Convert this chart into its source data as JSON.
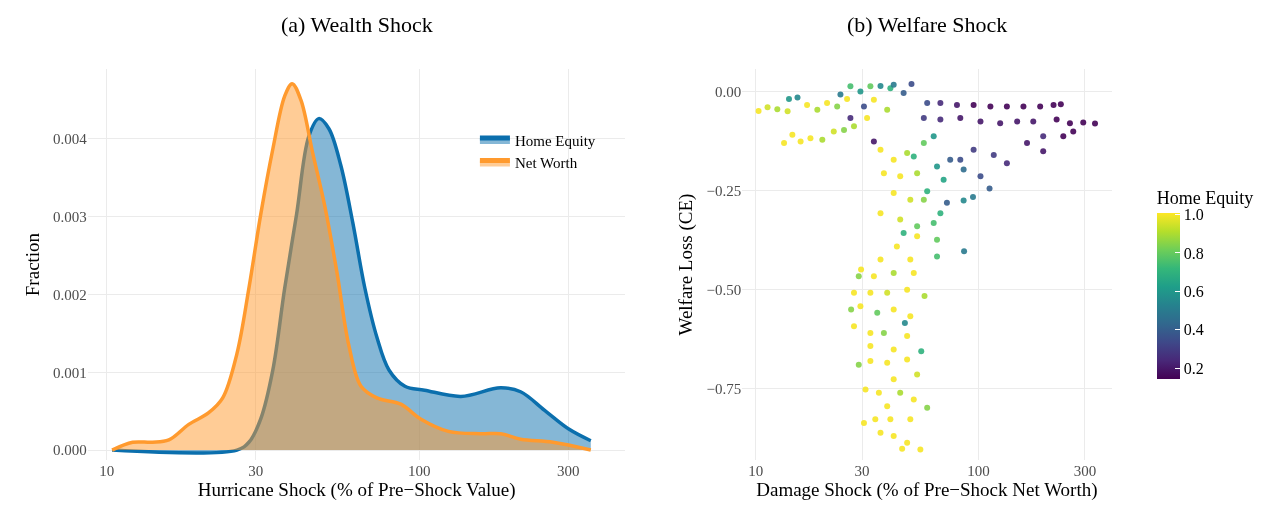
{
  "chart_data": [
    {
      "type": "area",
      "title": "(a) Wealth Shock",
      "xlabel": "Hurricane Shock (% of Pre−Shock Value)",
      "ylabel": "Fraction",
      "log": "x",
      "grid": true,
      "legend": "top right",
      "xlim": [
        8.7,
        457
      ],
      "xticks": [
        10,
        30,
        100,
        300
      ],
      "ylim": [
        -0.00013,
        0.0049
      ],
      "yticks": [
        {
          "value": 0,
          "label": "0.000"
        },
        {
          "value": 0.001,
          "label": "0.001"
        },
        {
          "value": 0.002,
          "label": "0.002"
        },
        {
          "value": 0.003,
          "label": "0.003"
        },
        {
          "value": 0.004,
          "label": "0.004"
        }
      ],
      "series": [
        {
          "name": "Home Equity",
          "color": "#0b6fad",
          "x": [
            10.4,
            26.1,
            28.5,
            31.1,
            34.0,
            37.1,
            40.5,
            44.3,
            47.7,
            51.4,
            56.1,
            61.3,
            67.0,
            73.2,
            80.0,
            90.0,
            104,
            136,
            182,
            211,
            252,
            301,
            354
          ],
          "values": [
            0,
            0,
            0.0001,
            0.0004,
            0.00103,
            0.00208,
            0.00303,
            0.00403,
            0.00426,
            0.00413,
            0.00366,
            0.00292,
            0.00208,
            0.00145,
            0.00103,
            0.00082,
            0.00077,
            0.00069,
            0.0008,
            0.00075,
            0.00051,
            0.00027,
            0.00012
          ]
        },
        {
          "name": "Net Worth",
          "color": "#ff9a2e",
          "x": [
            10.4,
            12.1,
            14.0,
            15.8,
            18.3,
            21.2,
            23.5,
            26.1,
            28.5,
            31.1,
            34.0,
            37.1,
            39.2,
            41.8,
            45.6,
            49.9,
            54.5,
            59.5,
            65.1,
            73.2,
            87.3,
            101,
            124,
            157,
            182,
            211,
            268,
            354
          ],
          "values": [
            0,
            0.0001,
            0.0001,
            0.00013,
            0.00033,
            0.00048,
            0.00067,
            0.00124,
            0.00208,
            0.00303,
            0.00387,
            0.00455,
            0.00471,
            0.0045,
            0.00382,
            0.00313,
            0.00229,
            0.00135,
            0.00082,
            0.00067,
            0.00059,
            0.0004,
            0.00024,
            0.00021,
            0.00021,
            0.00014,
            0.0001,
            0
          ]
        }
      ]
    },
    {
      "type": "scatter",
      "title": "(b) Welfare Shock",
      "xlabel": "Damage Shock (% of Pre−Shock Net Worth)",
      "ylabel": "Welfare Loss (CE)",
      "clabel": "Home Equity",
      "log": "x",
      "grid": true,
      "marker": "circle",
      "xlim": [
        8.7,
        395
      ],
      "xticks": [
        10,
        30,
        100,
        300
      ],
      "ylim": [
        -0.93,
        0.057
      ],
      "yticks": [
        {
          "value": 0,
          "label": "0.00"
        },
        {
          "value": -0.25,
          "label": "−0.25"
        },
        {
          "value": -0.5,
          "label": "−0.50"
        },
        {
          "value": -0.75,
          "label": "−0.75"
        }
      ],
      "clim": [
        0.145,
        1.01
      ],
      "cticks": [
        0.2,
        0.4,
        0.6,
        0.8,
        {
          "value": 1,
          "label": "1.0"
        }
      ],
      "x": [
        10.3,
        11.3,
        12.5,
        13.9,
        15.4,
        14.1,
        17.0,
        18.9,
        20.9,
        23.2,
        25.7,
        13.4,
        14.6,
        15.9,
        17.6,
        19.9,
        22.4,
        24.9,
        27.6,
        26.6,
        24.0,
        29.5,
        32.7,
        36.3,
        40.2,
        41.6,
        50.0,
        46.1,
        33.9,
        38.9,
        30.6,
        26.6,
        31.6,
        58.8,
        67.4,
        80,
        95,
        113,
        134,
        159,
        189,
        217,
        234,
        56.8,
        67.4,
        82.8,
        102,
        125,
        149,
        176,
        224,
        257,
        295,
        333,
        266,
        240,
        195,
        165,
        195,
        134,
        117,
        95,
        82.8,
        102,
        85.7,
        112,
        85.7,
        94.4,
        86.1,
        74.6,
        72.1,
        62.9,
        65.1,
        69.7,
        67.4,
        62.9,
        65.1,
        65.1,
        58.8,
        56.8,
        51.2,
        36.3,
        41.6,
        47.8,
        37.6,
        44.5,
        53.0,
        41.6,
        49.4,
        56.8,
        36.3,
        44.5,
        53.0,
        46.1,
        43.0,
        53,
        49.4,
        36.3,
        29.7,
        29.0,
        33.9,
        41.6,
        51.2,
        27.6,
        32.7,
        38.9,
        47.8,
        57.2,
        26.8,
        29.5,
        35.1,
        41.6,
        49.4,
        46.7,
        27.6,
        32.7,
        37.6,
        47.8,
        32.7,
        41.6,
        55.3,
        29.0,
        32.7,
        38.9,
        47.8,
        53.0,
        41.6,
        31.1,
        35.7,
        44.5,
        51.2,
        58.8,
        38.9,
        30.6,
        34.4,
        40.2,
        49.4,
        41.6,
        47.8,
        45.4,
        54.8,
        36.3,
        33.9
      ],
      "values": [
        -0.049,
        -0.04,
        -0.045,
        -0.05,
        -0.015,
        -0.019,
        -0.034,
        -0.046,
        -0.029,
        -0.038,
        -0.019,
        -0.13,
        -0.109,
        -0.126,
        -0.118,
        -0.122,
        -0.101,
        -0.097,
        -0.088,
        0.013,
        -0.008,
        0,
        0.013,
        0.014,
        0.008,
        0.017,
        0.019,
        -0.004,
        -0.021,
        -0.046,
        -0.038,
        -0.067,
        -0.067,
        -0.029,
        -0.029,
        -0.034,
        -0.034,
        -0.038,
        -0.038,
        -0.038,
        -0.038,
        -0.034,
        -0.032,
        -0.067,
        -0.071,
        -0.067,
        -0.076,
        -0.08,
        -0.076,
        -0.076,
        -0.071,
        -0.08,
        -0.078,
        -0.081,
        -0.101,
        -0.113,
        -0.113,
        -0.13,
        -0.151,
        -0.181,
        -0.16,
        -0.147,
        -0.172,
        -0.214,
        -0.197,
        -0.245,
        -0.275,
        -0.266,
        -0.403,
        -0.172,
        -0.281,
        -0.113,
        -0.189,
        -0.223,
        -0.307,
        -0.332,
        -0.374,
        -0.416,
        -0.252,
        -0.13,
        -0.164,
        -0.147,
        -0.172,
        -0.155,
        -0.206,
        -0.214,
        -0.206,
        -0.256,
        -0.273,
        -0.273,
        -0.307,
        -0.323,
        -0.34,
        -0.357,
        -0.391,
        -0.365,
        -0.424,
        -0.424,
        -0.449,
        -0.466,
        -0.466,
        -0.458,
        -0.458,
        -0.508,
        -0.508,
        -0.508,
        -0.5,
        -0.516,
        -0.55,
        -0.542,
        -0.558,
        -0.55,
        -0.567,
        -0.584,
        -0.592,
        -0.609,
        -0.609,
        -0.617,
        -0.642,
        -0.651,
        -0.655,
        -0.689,
        -0.68,
        -0.684,
        -0.676,
        -0.714,
        -0.726,
        -0.752,
        -0.76,
        -0.76,
        -0.777,
        -0.798,
        -0.794,
        -0.836,
        -0.827,
        -0.827,
        -0.827,
        -0.869,
        -0.886,
        -0.901,
        -0.903,
        -0.861,
        -0.126
      ],
      "cvalues": [
        1.0,
        0.95,
        0.9,
        0.95,
        0.55,
        0.6,
        1.0,
        0.9,
        1.0,
        0.85,
        1.0,
        1.0,
        1.0,
        1.0,
        1.0,
        0.9,
        0.95,
        0.85,
        0.9,
        0.75,
        0.5,
        0.6,
        0.8,
        0.55,
        0.7,
        0.5,
        0.35,
        0.4,
        1.0,
        0.9,
        0.35,
        0.25,
        1.0,
        0.35,
        0.25,
        0.2,
        0.15,
        0.15,
        0.15,
        0.15,
        0.15,
        0.15,
        0.15,
        0.3,
        0.25,
        0.2,
        0.2,
        0.2,
        0.2,
        0.2,
        0.15,
        0.15,
        0.15,
        0.15,
        0.15,
        0.15,
        0.25,
        0.2,
        0.2,
        0.25,
        0.3,
        0.3,
        0.35,
        0.35,
        0.45,
        0.4,
        0.55,
        0.5,
        0.5,
        0.4,
        0.4,
        0.6,
        0.6,
        0.65,
        0.7,
        0.75,
        0.8,
        0.75,
        0.7,
        0.8,
        0.7,
        1.0,
        1.0,
        0.9,
        1.0,
        1.0,
        0.9,
        1.0,
        0.95,
        0.85,
        1.0,
        0.95,
        0.8,
        0.7,
        1.0,
        1.0,
        1.0,
        1.0,
        1.0,
        0.85,
        1.0,
        0.9,
        1.0,
        1.0,
        1.0,
        0.95,
        1.0,
        0.9,
        0.85,
        1.0,
        0.8,
        1.0,
        1.0,
        0.55,
        1.0,
        1.0,
        0.85,
        1.0,
        1.0,
        1.0,
        0.7,
        0.85,
        1.0,
        1.0,
        1.0,
        0.95,
        1.0,
        1.0,
        1.0,
        0.9,
        1.0,
        0.85,
        1.0,
        1.0,
        1.0,
        1.0,
        1.0,
        1.0,
        1.0,
        1.0,
        1.0,
        1.0,
        0.2
      ]
    }
  ]
}
